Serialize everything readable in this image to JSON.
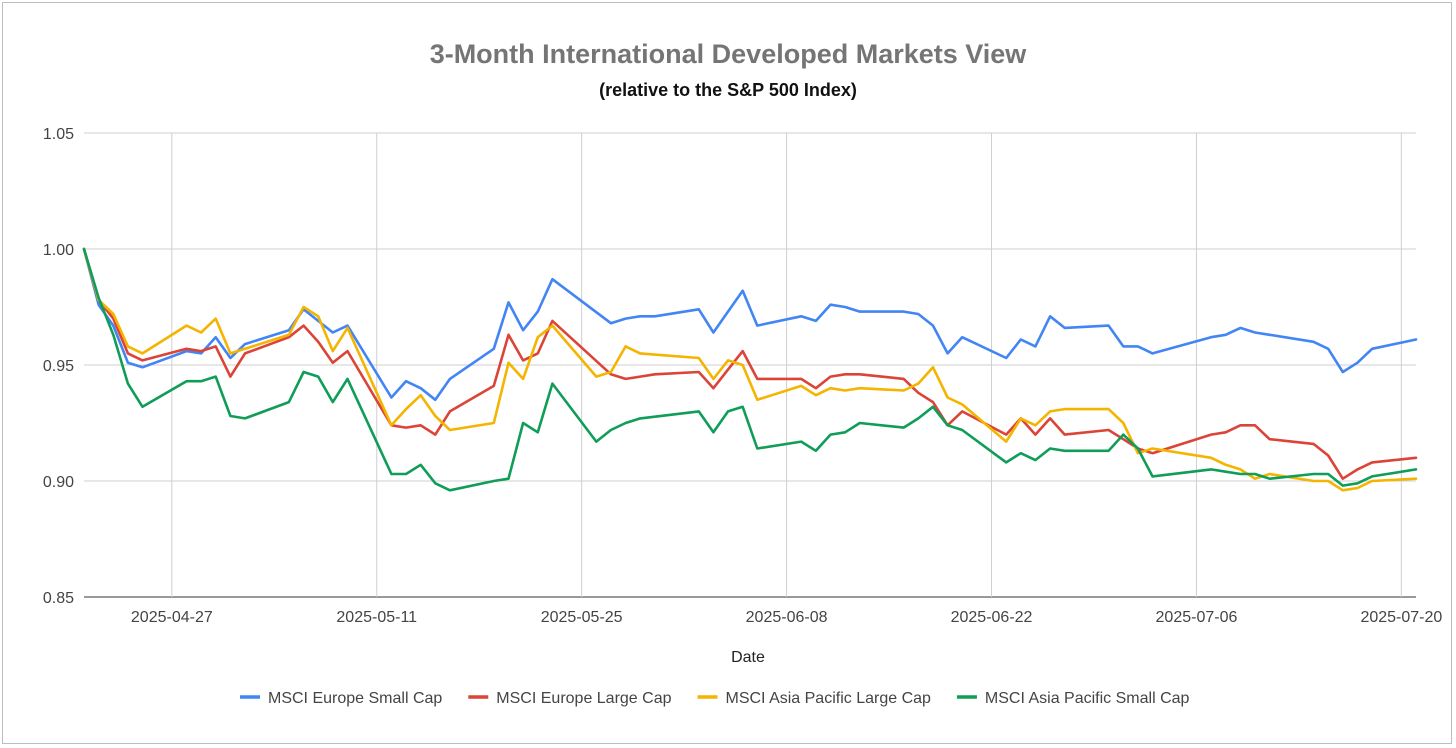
{
  "chart_data": {
    "type": "line",
    "title": "3-Month International Developed Markets View",
    "subtitle": "(relative to the S&P 500 Index)",
    "xlabel": "Date",
    "ylabel": "",
    "ylim": [
      0.85,
      1.05
    ],
    "y_ticks": [
      "0.85",
      "0.90",
      "0.95",
      "1.00",
      "1.05"
    ],
    "x_range": [
      "2025-04-21",
      "2025-07-21"
    ],
    "x_ticks": [
      "2025-04-27",
      "2025-05-11",
      "2025-05-25",
      "2025-06-08",
      "2025-06-22",
      "2025-07-06",
      "2025-07-20"
    ],
    "grid": true,
    "legend_position": "bottom",
    "series": [
      {
        "name": "MSCI Europe Small Cap",
        "color": "#4285F4",
        "x": [
          "2025-04-21",
          "2025-04-22",
          "2025-04-23",
          "2025-04-24",
          "2025-04-25",
          "2025-04-28",
          "2025-04-29",
          "2025-04-30",
          "2025-05-01",
          "2025-05-02",
          "2025-05-05",
          "2025-05-06",
          "2025-05-07",
          "2025-05-08",
          "2025-05-09",
          "2025-05-12",
          "2025-05-13",
          "2025-05-14",
          "2025-05-15",
          "2025-05-16",
          "2025-05-19",
          "2025-05-20",
          "2025-05-21",
          "2025-05-22",
          "2025-05-23",
          "2025-05-27",
          "2025-05-28",
          "2025-05-29",
          "2025-05-30",
          "2025-06-02",
          "2025-06-03",
          "2025-06-04",
          "2025-06-05",
          "2025-06-06",
          "2025-06-09",
          "2025-06-10",
          "2025-06-11",
          "2025-06-12",
          "2025-06-13",
          "2025-06-16",
          "2025-06-17",
          "2025-06-18",
          "2025-06-19",
          "2025-06-20",
          "2025-06-23",
          "2025-06-24",
          "2025-06-25",
          "2025-06-26",
          "2025-06-27",
          "2025-06-30",
          "2025-07-01",
          "2025-07-02",
          "2025-07-03",
          "2025-07-07",
          "2025-07-08",
          "2025-07-09",
          "2025-07-10",
          "2025-07-11",
          "2025-07-14",
          "2025-07-15",
          "2025-07-16",
          "2025-07-17",
          "2025-07-18",
          "2025-07-21"
        ],
        "values": [
          1.0,
          0.976,
          0.967,
          0.951,
          0.949,
          0.956,
          0.955,
          0.962,
          0.953,
          0.959,
          0.965,
          0.974,
          0.969,
          0.964,
          0.967,
          0.936,
          0.943,
          0.94,
          0.935,
          0.944,
          0.957,
          0.977,
          0.965,
          0.973,
          0.987,
          0.968,
          0.97,
          0.971,
          0.971,
          0.974,
          0.964,
          0.973,
          0.982,
          0.967,
          0.971,
          0.969,
          0.976,
          0.975,
          0.973,
          0.973,
          0.972,
          0.967,
          0.955,
          0.962,
          0.953,
          0.961,
          0.958,
          0.971,
          0.966,
          0.967,
          0.958,
          0.958,
          0.955,
          0.962,
          0.963,
          0.966,
          0.964,
          0.963,
          0.96,
          0.957,
          0.947,
          0.951,
          0.957,
          0.961
        ]
      },
      {
        "name": "MSCI Europe Large Cap",
        "color": "#DB4437",
        "x": [
          "2025-04-21",
          "2025-04-22",
          "2025-04-23",
          "2025-04-24",
          "2025-04-25",
          "2025-04-28",
          "2025-04-29",
          "2025-04-30",
          "2025-05-01",
          "2025-05-02",
          "2025-05-05",
          "2025-05-06",
          "2025-05-07",
          "2025-05-08",
          "2025-05-09",
          "2025-05-12",
          "2025-05-13",
          "2025-05-14",
          "2025-05-15",
          "2025-05-16",
          "2025-05-19",
          "2025-05-20",
          "2025-05-21",
          "2025-05-22",
          "2025-05-23",
          "2025-05-27",
          "2025-05-28",
          "2025-05-29",
          "2025-05-30",
          "2025-06-02",
          "2025-06-03",
          "2025-06-04",
          "2025-06-05",
          "2025-06-06",
          "2025-06-09",
          "2025-06-10",
          "2025-06-11",
          "2025-06-12",
          "2025-06-13",
          "2025-06-16",
          "2025-06-17",
          "2025-06-18",
          "2025-06-19",
          "2025-06-20",
          "2025-06-23",
          "2025-06-24",
          "2025-06-25",
          "2025-06-26",
          "2025-06-27",
          "2025-06-30",
          "2025-07-01",
          "2025-07-02",
          "2025-07-03",
          "2025-07-07",
          "2025-07-08",
          "2025-07-09",
          "2025-07-10",
          "2025-07-11",
          "2025-07-14",
          "2025-07-15",
          "2025-07-16",
          "2025-07-17",
          "2025-07-18",
          "2025-07-21"
        ],
        "values": [
          1.0,
          0.978,
          0.97,
          0.955,
          0.952,
          0.957,
          0.956,
          0.958,
          0.945,
          0.955,
          0.962,
          0.967,
          0.96,
          0.951,
          0.956,
          0.924,
          0.923,
          0.924,
          0.92,
          0.93,
          0.941,
          0.963,
          0.952,
          0.955,
          0.969,
          0.946,
          0.944,
          0.945,
          0.946,
          0.947,
          0.94,
          0.948,
          0.956,
          0.944,
          0.944,
          0.94,
          0.945,
          0.946,
          0.946,
          0.944,
          0.938,
          0.934,
          0.924,
          0.93,
          0.92,
          0.927,
          0.92,
          0.927,
          0.92,
          0.922,
          0.918,
          0.914,
          0.912,
          0.92,
          0.921,
          0.924,
          0.924,
          0.918,
          0.916,
          0.911,
          0.901,
          0.905,
          0.908,
          0.91
        ]
      },
      {
        "name": "MSCI Asia Pacific Large Cap",
        "color": "#F4B400",
        "x": [
          "2025-04-21",
          "2025-04-22",
          "2025-04-23",
          "2025-04-24",
          "2025-04-25",
          "2025-04-28",
          "2025-04-29",
          "2025-04-30",
          "2025-05-01",
          "2025-05-02",
          "2025-05-05",
          "2025-05-06",
          "2025-05-07",
          "2025-05-08",
          "2025-05-09",
          "2025-05-12",
          "2025-05-13",
          "2025-05-14",
          "2025-05-15",
          "2025-05-16",
          "2025-05-19",
          "2025-05-20",
          "2025-05-21",
          "2025-05-22",
          "2025-05-23",
          "2025-05-26",
          "2025-05-27",
          "2025-05-28",
          "2025-05-29",
          "2025-06-02",
          "2025-06-03",
          "2025-06-04",
          "2025-06-05",
          "2025-06-06",
          "2025-06-09",
          "2025-06-10",
          "2025-06-11",
          "2025-06-12",
          "2025-06-13",
          "2025-06-16",
          "2025-06-17",
          "2025-06-18",
          "2025-06-19",
          "2025-06-20",
          "2025-06-23",
          "2025-06-24",
          "2025-06-25",
          "2025-06-26",
          "2025-06-27",
          "2025-06-30",
          "2025-07-01",
          "2025-07-02",
          "2025-07-03",
          "2025-07-07",
          "2025-07-08",
          "2025-07-09",
          "2025-07-10",
          "2025-07-11",
          "2025-07-14",
          "2025-07-15",
          "2025-07-16",
          "2025-07-17",
          "2025-07-18",
          "2025-07-21"
        ],
        "values": [
          1.0,
          0.978,
          0.972,
          0.958,
          0.955,
          0.967,
          0.964,
          0.97,
          0.955,
          0.957,
          0.963,
          0.975,
          0.971,
          0.956,
          0.966,
          0.924,
          0.931,
          0.937,
          0.928,
          0.922,
          0.925,
          0.951,
          0.944,
          0.962,
          0.967,
          0.945,
          0.947,
          0.958,
          0.955,
          0.953,
          0.944,
          0.952,
          0.95,
          0.935,
          0.941,
          0.937,
          0.94,
          0.939,
          0.94,
          0.939,
          0.942,
          0.949,
          0.936,
          0.933,
          0.917,
          0.927,
          0.924,
          0.93,
          0.931,
          0.931,
          0.925,
          0.912,
          0.914,
          0.91,
          0.907,
          0.905,
          0.901,
          0.903,
          0.9,
          0.9,
          0.896,
          0.897,
          0.9,
          0.901
        ]
      },
      {
        "name": "MSCI Asia Pacific Small Cap",
        "color": "#0F9D58",
        "x": [
          "2025-04-21",
          "2025-04-22",
          "2025-04-23",
          "2025-04-24",
          "2025-04-25",
          "2025-04-28",
          "2025-04-29",
          "2025-04-30",
          "2025-05-01",
          "2025-05-02",
          "2025-05-05",
          "2025-05-06",
          "2025-05-07",
          "2025-05-08",
          "2025-05-09",
          "2025-05-12",
          "2025-05-13",
          "2025-05-14",
          "2025-05-15",
          "2025-05-16",
          "2025-05-19",
          "2025-05-20",
          "2025-05-21",
          "2025-05-22",
          "2025-05-23",
          "2025-05-26",
          "2025-05-27",
          "2025-05-28",
          "2025-05-29",
          "2025-06-02",
          "2025-06-03",
          "2025-06-04",
          "2025-06-05",
          "2025-06-06",
          "2025-06-09",
          "2025-06-10",
          "2025-06-11",
          "2025-06-12",
          "2025-06-13",
          "2025-06-16",
          "2025-06-17",
          "2025-06-18",
          "2025-06-19",
          "2025-06-20",
          "2025-06-23",
          "2025-06-24",
          "2025-06-25",
          "2025-06-26",
          "2025-06-27",
          "2025-06-30",
          "2025-07-01",
          "2025-07-02",
          "2025-07-03",
          "2025-07-07",
          "2025-07-08",
          "2025-07-09",
          "2025-07-10",
          "2025-07-11",
          "2025-07-14",
          "2025-07-15",
          "2025-07-16",
          "2025-07-17",
          "2025-07-18",
          "2025-07-21"
        ],
        "values": [
          1.0,
          0.979,
          0.963,
          0.942,
          0.932,
          0.943,
          0.943,
          0.945,
          0.928,
          0.927,
          0.934,
          0.947,
          0.945,
          0.934,
          0.944,
          0.903,
          0.903,
          0.907,
          0.899,
          0.896,
          0.9,
          0.901,
          0.925,
          0.921,
          0.942,
          0.917,
          0.922,
          0.925,
          0.927,
          0.93,
          0.921,
          0.93,
          0.932,
          0.914,
          0.917,
          0.913,
          0.92,
          0.921,
          0.925,
          0.923,
          0.927,
          0.932,
          0.924,
          0.922,
          0.908,
          0.912,
          0.909,
          0.914,
          0.913,
          0.913,
          0.92,
          0.914,
          0.902,
          0.905,
          0.904,
          0.903,
          0.903,
          0.901,
          0.903,
          0.903,
          0.898,
          0.899,
          0.902,
          0.905
        ]
      }
    ]
  }
}
